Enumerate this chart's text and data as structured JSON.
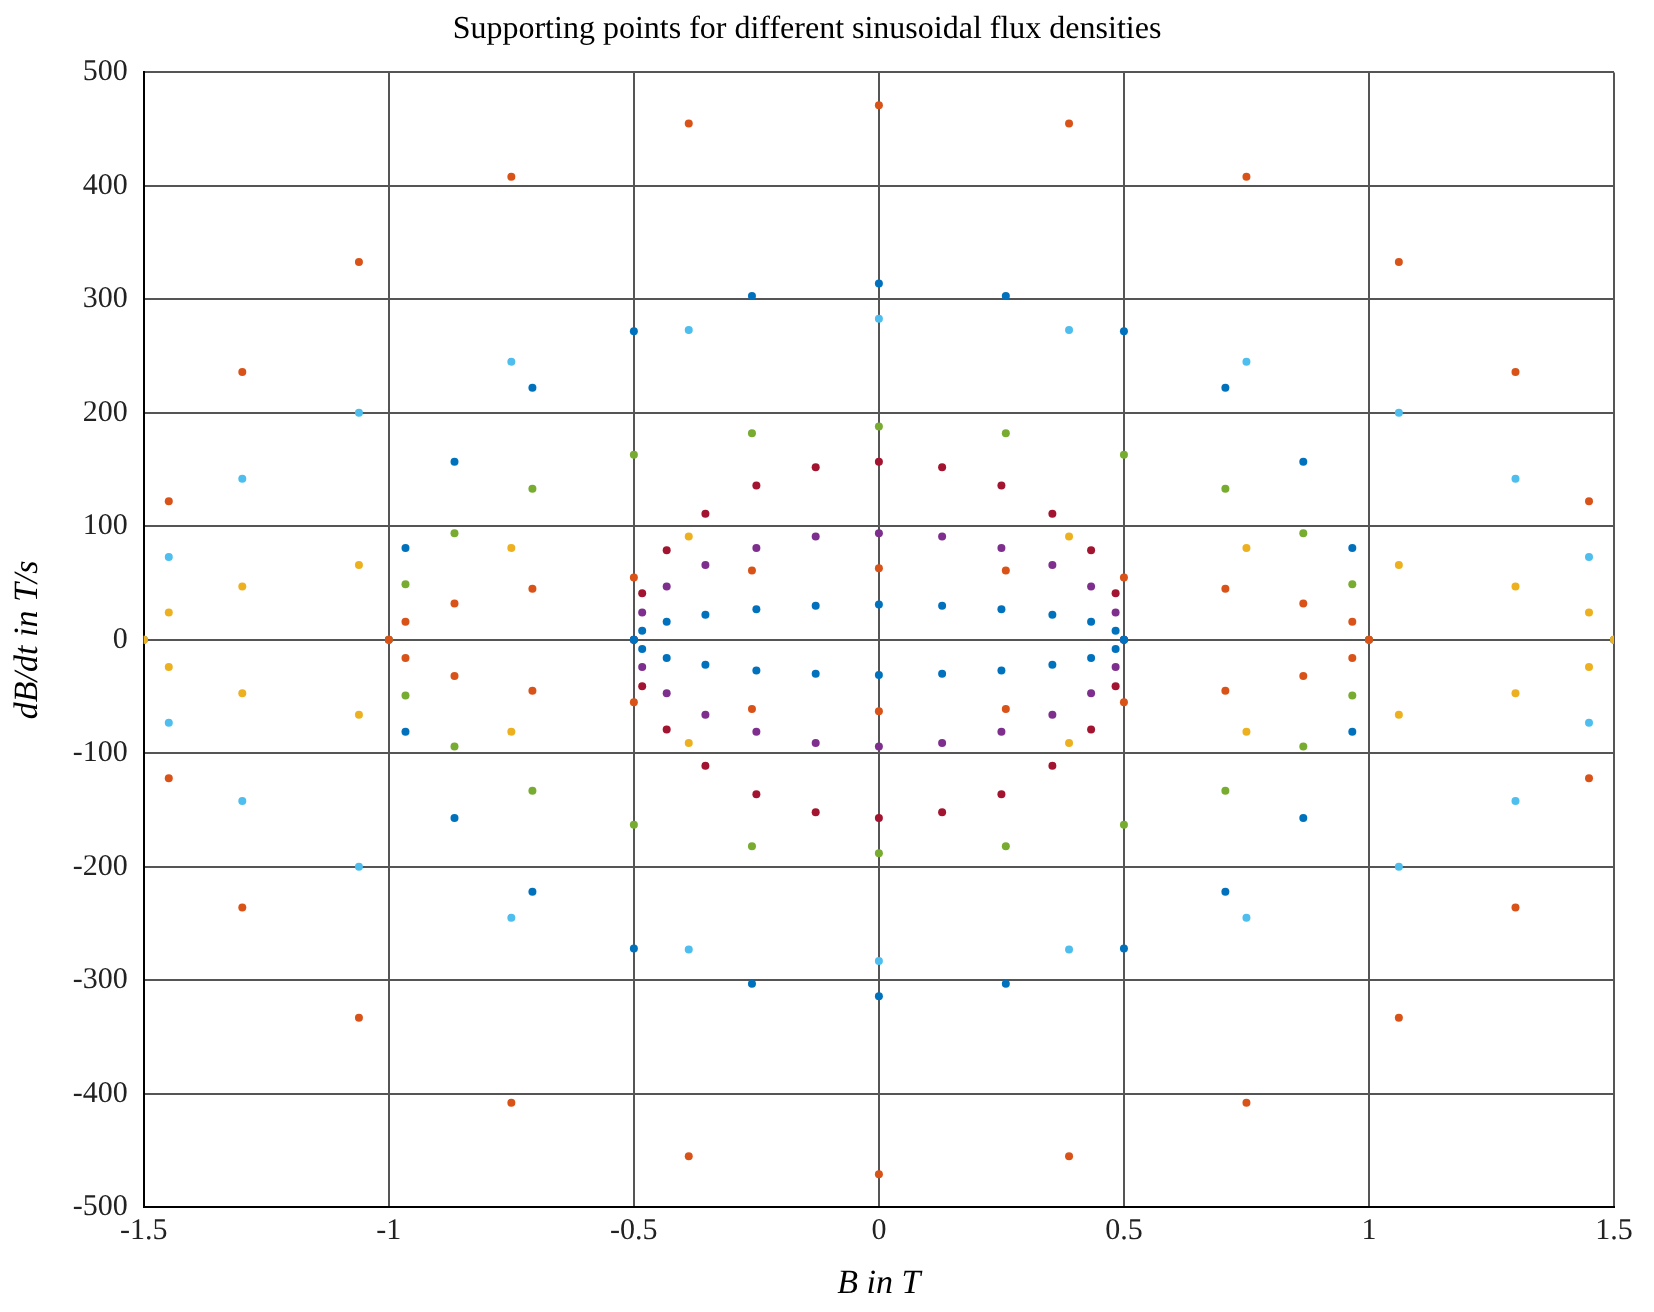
{
  "chart_data": {
    "type": "scatter",
    "title": "Supporting points for different sinusoidal flux densities",
    "xlabel": "B in T",
    "ylabel": "dB/dt in T/s",
    "xlim": [
      -1.5,
      1.5
    ],
    "xticks": [
      -1.5,
      -1,
      -0.5,
      0,
      0.5,
      1,
      1.5
    ],
    "ylim": [
      -500,
      500
    ],
    "yticks": [
      -500,
      -400,
      -300,
      -200,
      -100,
      0,
      100,
      200,
      300,
      400,
      500
    ],
    "grid": true,
    "legend": false,
    "marker": "circle",
    "series": [
      {
        "color": "#0072bd",
        "x": [
          0.5,
          0.483,
          0.433,
          0.354,
          0.25,
          0.129,
          0,
          -0.129,
          -0.25,
          -0.354,
          -0.433,
          -0.483,
          -0.5,
          -0.483,
          -0.433,
          -0.354,
          -0.25,
          -0.129,
          0,
          0.129,
          0.25,
          0.354,
          0.433,
          0.483
        ],
        "values": [
          0,
          8,
          16,
          22,
          27,
          30,
          31,
          30,
          27,
          22,
          16,
          8,
          0,
          -8,
          -16,
          -22,
          -27,
          -30,
          -31,
          -30,
          -27,
          -22,
          -16,
          -8
        ]
      },
      {
        "color": "#7e2f8e",
        "x": [
          0.5,
          0.483,
          0.433,
          0.354,
          0.25,
          0.129,
          0,
          -0.129,
          -0.25,
          -0.354,
          -0.433,
          -0.483,
          -0.5,
          -0.483,
          -0.433,
          -0.354,
          -0.25,
          -0.129,
          0,
          0.129,
          0.25,
          0.354,
          0.433,
          0.483
        ],
        "values": [
          0,
          24,
          47,
          66,
          81,
          91,
          94,
          91,
          81,
          66,
          47,
          24,
          0,
          -24,
          -47,
          -66,
          -81,
          -91,
          -94,
          -91,
          -81,
          -66,
          -47,
          -24
        ]
      },
      {
        "color": "#a2142f",
        "x": [
          0.5,
          0.483,
          0.433,
          0.354,
          0.25,
          0.129,
          0,
          -0.129,
          -0.25,
          -0.354,
          -0.433,
          -0.483,
          -0.5,
          -0.483,
          -0.433,
          -0.354,
          -0.25,
          -0.129,
          0,
          0.129,
          0.25,
          0.354,
          0.433,
          0.483
        ],
        "values": [
          0,
          41,
          79,
          111,
          136,
          152,
          157,
          152,
          136,
          111,
          79,
          41,
          0,
          -41,
          -79,
          -111,
          -136,
          -152,
          -157,
          -152,
          -136,
          -111,
          -79,
          -41
        ]
      },
      {
        "color": "#d95319",
        "x": [
          1,
          0.966,
          0.866,
          0.707,
          0.5,
          0.259,
          0,
          -0.259,
          -0.5,
          -0.707,
          -0.866,
          -0.966,
          -1,
          -0.966,
          -0.866,
          -0.707,
          -0.5,
          -0.259,
          0,
          0.259,
          0.5,
          0.707,
          0.866,
          0.966
        ],
        "values": [
          0,
          16,
          32,
          45,
          55,
          61,
          63,
          61,
          55,
          45,
          32,
          16,
          0,
          -16,
          -32,
          -45,
          -55,
          -61,
          -63,
          -61,
          -55,
          -45,
          -32,
          -16
        ]
      },
      {
        "color": "#77ac30",
        "x": [
          1,
          0.966,
          0.866,
          0.707,
          0.5,
          0.259,
          0,
          -0.259,
          -0.5,
          -0.707,
          -0.866,
          -0.966,
          -1,
          -0.966,
          -0.866,
          -0.707,
          -0.5,
          -0.259,
          0,
          0.259,
          0.5,
          0.707,
          0.866,
          0.966
        ],
        "values": [
          0,
          49,
          94,
          133,
          163,
          182,
          188,
          182,
          163,
          133,
          94,
          49,
          0,
          -49,
          -94,
          -133,
          -163,
          -182,
          -188,
          -182,
          -163,
          -133,
          -94,
          -49
        ]
      },
      {
        "color": "#0072bd",
        "x": [
          1,
          0.966,
          0.866,
          0.707,
          0.5,
          0.259,
          0,
          -0.259,
          -0.5,
          -0.707,
          -0.866,
          -0.966,
          -1,
          -0.966,
          -0.866,
          -0.707,
          -0.5,
          -0.259,
          0,
          0.259,
          0.5,
          0.707,
          0.866,
          0.966
        ],
        "values": [
          0,
          81,
          157,
          222,
          272,
          303,
          314,
          303,
          272,
          222,
          157,
          81,
          0,
          -81,
          -157,
          -222,
          -272,
          -303,
          -314,
          -303,
          -272,
          -222,
          -157,
          -81
        ]
      },
      {
        "color": "#edb120",
        "x": [
          1.5,
          1.449,
          1.299,
          1.061,
          0.75,
          0.388,
          0,
          -0.388,
          -0.75,
          -1.061,
          -1.299,
          -1.449,
          -1.5,
          -1.449,
          -1.299,
          -1.061,
          -0.75,
          -0.388,
          0,
          0.388,
          0.75,
          1.061,
          1.299,
          1.449
        ],
        "values": [
          0,
          24,
          47,
          66,
          81,
          91,
          null,
          91,
          81,
          66,
          47,
          24,
          0,
          -24,
          -47,
          -66,
          -81,
          -91,
          null,
          -91,
          -81,
          -66,
          -47,
          -24
        ]
      },
      {
        "color": "#4dbeee",
        "x": [
          1.5,
          1.449,
          1.299,
          1.061,
          0.75,
          0.388,
          0,
          -0.388,
          -0.75,
          -1.061,
          -1.299,
          -1.449,
          -1.5,
          -1.449,
          -1.299,
          -1.061,
          -0.75,
          -0.388,
          0,
          0.388,
          0.75,
          1.061,
          1.299,
          1.449
        ],
        "values": [
          0,
          73,
          142,
          200,
          245,
          273,
          283,
          273,
          245,
          200,
          142,
          73,
          0,
          -73,
          -142,
          -200,
          -245,
          -273,
          -283,
          -273,
          -245,
          -200,
          -142,
          -73
        ]
      },
      {
        "color": "#d95319",
        "x": [
          1.5,
          1.449,
          1.299,
          1.061,
          0.75,
          0.388,
          0,
          -0.388,
          -0.75,
          -1.061,
          -1.299,
          -1.449,
          -1.5,
          -1.449,
          -1.299,
          -1.061,
          -0.75,
          -0.388,
          0,
          0.388,
          0.75,
          1.061,
          1.299,
          1.449
        ],
        "values": [
          0,
          122,
          236,
          333,
          408,
          455,
          471,
          455,
          408,
          333,
          236,
          122,
          0,
          -122,
          -236,
          -333,
          -408,
          -455,
          -471,
          -455,
          -408,
          -333,
          -236,
          -122
        ]
      }
    ]
  }
}
